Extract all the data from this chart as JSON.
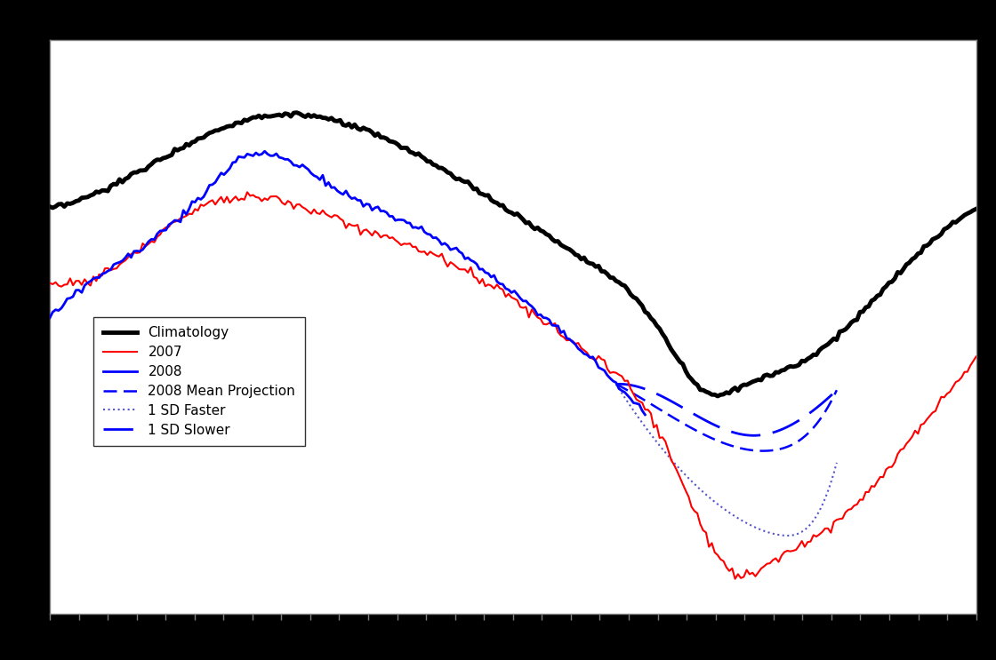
{
  "background_color": "#000000",
  "plot_bg_color": "#ffffff",
  "border_color": "#808080",
  "legend_labels": [
    "Climatology",
    "2007",
    "2008",
    "2008 Mean Projection",
    "1 SD Faster",
    "1 SD Slower"
  ],
  "n_points": 365
}
